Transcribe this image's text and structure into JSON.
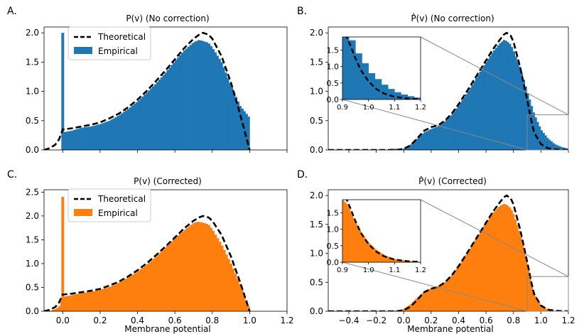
{
  "figure": {
    "xlabel": "Membrane potential"
  },
  "colors": {
    "blue": "#1f77b4",
    "orange": "#ff7f0e",
    "theory": "#000000",
    "zoom": "#888888"
  },
  "chart_data": [
    {
      "id": "A",
      "panel_label": "A.",
      "title": "P(v) (No correction)",
      "type": "bar",
      "series": [
        {
          "name": "Theoretical",
          "style": "dashed-line"
        },
        {
          "name": "Empirical",
          "style": "histogram"
        }
      ],
      "legend": {
        "entries": [
          "Theoretical",
          "Empirical"
        ],
        "placement": "top-left"
      },
      "xlim": [
        -0.1,
        1.2
      ],
      "ylim": [
        0,
        2.1
      ],
      "xticks": [
        0.0,
        0.2,
        0.4,
        0.6,
        0.8,
        1.0,
        1.2
      ],
      "yticks": [
        0.0,
        0.5,
        1.0,
        1.5,
        2.0
      ],
      "show_xticklabels": false,
      "theory": [
        [
          -0.1,
          0
        ],
        [
          -0.07,
          0.03
        ],
        [
          -0.04,
          0.09
        ],
        [
          -0.02,
          0.18
        ],
        [
          0,
          0.35
        ],
        [
          0.05,
          0.37
        ],
        [
          0.1,
          0.4
        ],
        [
          0.15,
          0.43
        ],
        [
          0.2,
          0.47
        ],
        [
          0.25,
          0.54
        ],
        [
          0.3,
          0.62
        ],
        [
          0.35,
          0.73
        ],
        [
          0.4,
          0.86
        ],
        [
          0.45,
          1.01
        ],
        [
          0.5,
          1.18
        ],
        [
          0.55,
          1.36
        ],
        [
          0.6,
          1.55
        ],
        [
          0.65,
          1.74
        ],
        [
          0.7,
          1.9
        ],
        [
          0.73,
          1.97
        ],
        [
          0.75,
          2.0
        ],
        [
          0.78,
          1.97
        ],
        [
          0.8,
          1.9
        ],
        [
          0.85,
          1.6
        ],
        [
          0.9,
          1.15
        ],
        [
          0.95,
          0.6
        ],
        [
          1.0,
          0
        ]
      ],
      "empirical": [
        [
          0.0,
          0.3
        ],
        [
          0.05,
          0.33
        ],
        [
          0.1,
          0.38
        ],
        [
          0.15,
          0.4
        ],
        [
          0.2,
          0.44
        ],
        [
          0.25,
          0.5
        ],
        [
          0.3,
          0.59
        ],
        [
          0.35,
          0.7
        ],
        [
          0.4,
          0.83
        ],
        [
          0.45,
          0.98
        ],
        [
          0.5,
          1.14
        ],
        [
          0.55,
          1.32
        ],
        [
          0.6,
          1.52
        ],
        [
          0.65,
          1.7
        ],
        [
          0.7,
          1.84
        ],
        [
          0.73,
          1.88
        ],
        [
          0.75,
          1.86
        ],
        [
          0.78,
          1.83
        ],
        [
          0.8,
          1.75
        ],
        [
          0.85,
          1.5
        ],
        [
          0.9,
          1.1
        ],
        [
          0.95,
          0.75
        ],
        [
          1.0,
          0.55
        ]
      ],
      "empirical_range": [
        0.0,
        1.0
      ],
      "spike": {
        "x": 0.0,
        "height": 2.0
      }
    },
    {
      "id": "B",
      "panel_label": "B.",
      "title": "P̂(v) (No correction)",
      "type": "bar",
      "series": [
        {
          "name": "Theoretical",
          "style": "dashed-line"
        },
        {
          "name": "Empirical",
          "style": "histogram"
        }
      ],
      "xlim": [
        -0.55,
        1.2
      ],
      "ylim": [
        0,
        2.1
      ],
      "xticks": [
        -0.4,
        -0.2,
        0.0,
        0.2,
        0.4,
        0.6,
        0.8,
        1.0,
        1.2
      ],
      "yticks": [
        0.0,
        0.5,
        1.0,
        1.5,
        2.0
      ],
      "show_xticklabels": false,
      "theory": [
        [
          -0.55,
          0
        ],
        [
          -0.05,
          0
        ],
        [
          0.0,
          0.02
        ],
        [
          0.05,
          0.08
        ],
        [
          0.1,
          0.2
        ],
        [
          0.15,
          0.33
        ],
        [
          0.2,
          0.39
        ],
        [
          0.25,
          0.42
        ],
        [
          0.3,
          0.5
        ],
        [
          0.35,
          0.62
        ],
        [
          0.4,
          0.78
        ],
        [
          0.45,
          0.96
        ],
        [
          0.5,
          1.15
        ],
        [
          0.55,
          1.34
        ],
        [
          0.6,
          1.53
        ],
        [
          0.65,
          1.72
        ],
        [
          0.7,
          1.88
        ],
        [
          0.73,
          1.97
        ],
        [
          0.75,
          2.0
        ],
        [
          0.78,
          1.95
        ],
        [
          0.8,
          1.85
        ],
        [
          0.85,
          1.4
        ],
        [
          0.9,
          0.85
        ],
        [
          0.93,
          0.5
        ],
        [
          0.95,
          0.3
        ],
        [
          1.0,
          0.1
        ],
        [
          1.05,
          0.03
        ],
        [
          1.1,
          0.01
        ],
        [
          1.2,
          0
        ]
      ],
      "empirical": [
        [
          0.0,
          0.02
        ],
        [
          0.05,
          0.09
        ],
        [
          0.1,
          0.2
        ],
        [
          0.15,
          0.3
        ],
        [
          0.2,
          0.36
        ],
        [
          0.25,
          0.4
        ],
        [
          0.3,
          0.49
        ],
        [
          0.35,
          0.6
        ],
        [
          0.4,
          0.76
        ],
        [
          0.45,
          0.93
        ],
        [
          0.5,
          1.12
        ],
        [
          0.55,
          1.31
        ],
        [
          0.6,
          1.5
        ],
        [
          0.65,
          1.68
        ],
        [
          0.7,
          1.82
        ],
        [
          0.73,
          1.88
        ],
        [
          0.75,
          1.86
        ],
        [
          0.78,
          1.8
        ],
        [
          0.8,
          1.7
        ],
        [
          0.85,
          1.4
        ],
        [
          0.9,
          1.0
        ],
        [
          0.95,
          0.62
        ],
        [
          1.0,
          0.35
        ],
        [
          1.05,
          0.2
        ],
        [
          1.1,
          0.1
        ],
        [
          1.15,
          0.05
        ],
        [
          1.2,
          0.02
        ]
      ],
      "empirical_range": [
        -0.1,
        1.2
      ],
      "inset": {
        "xlim": [
          0.9,
          1.2
        ],
        "ylim": [
          0,
          1.9
        ],
        "xticks": [
          0.9,
          1.0,
          1.1,
          1.2
        ],
        "yticks": [
          0.0,
          0.5,
          1.0,
          1.5
        ],
        "xticklabels": [
          "0.9",
          "1.0",
          "1.1",
          "1.2"
        ],
        "yticklabels": [
          "0.0",
          "0.5",
          "1.0",
          "1.5"
        ],
        "zoom_region": {
          "x": [
            0.9,
            1.2
          ],
          "y": [
            0,
            0.6
          ]
        },
        "empirical_bins": [
          [
            0.9,
            1.9
          ],
          [
            0.925,
            1.8
          ],
          [
            0.95,
            1.4
          ],
          [
            0.975,
            1.1
          ],
          [
            1.0,
            0.8
          ],
          [
            1.025,
            0.62
          ],
          [
            1.05,
            0.45
          ],
          [
            1.075,
            0.32
          ],
          [
            1.1,
            0.22
          ],
          [
            1.125,
            0.15
          ],
          [
            1.15,
            0.1
          ],
          [
            1.175,
            0.06
          ]
        ],
        "empirical_binwidth": 0.025,
        "theory": [
          [
            0.9,
            2.2
          ],
          [
            0.93,
            1.65
          ],
          [
            0.95,
            1.25
          ],
          [
            0.97,
            0.9
          ],
          [
            1.0,
            0.55
          ],
          [
            1.03,
            0.32
          ],
          [
            1.06,
            0.18
          ],
          [
            1.1,
            0.08
          ],
          [
            1.15,
            0.03
          ],
          [
            1.2,
            0.01
          ]
        ]
      }
    },
    {
      "id": "C",
      "panel_label": "C.",
      "title": "P(v) (Corrected)",
      "type": "bar",
      "series": [
        {
          "name": "Theoretical",
          "style": "dashed-line"
        },
        {
          "name": "Empirical",
          "style": "histogram"
        }
      ],
      "legend": {
        "entries": [
          "Theoretical",
          "Empirical"
        ],
        "placement": "top-left"
      },
      "xlim": [
        -0.1,
        1.2
      ],
      "ylim": [
        0,
        2.55
      ],
      "xticks": [
        0.0,
        0.2,
        0.4,
        0.6,
        0.8,
        1.0,
        1.2
      ],
      "yticks": [
        0.0,
        0.5,
        1.0,
        1.5,
        2.0,
        2.5
      ],
      "xticklabels": [
        "0.0",
        "0.2",
        "0.4",
        "0.6",
        "0.8",
        "1.0",
        "1.2"
      ],
      "show_xticklabels": true,
      "theory": [
        [
          -0.1,
          0
        ],
        [
          -0.07,
          0.03
        ],
        [
          -0.04,
          0.09
        ],
        [
          -0.02,
          0.18
        ],
        [
          0,
          0.35
        ],
        [
          0.05,
          0.37
        ],
        [
          0.1,
          0.4
        ],
        [
          0.15,
          0.43
        ],
        [
          0.2,
          0.47
        ],
        [
          0.25,
          0.54
        ],
        [
          0.3,
          0.62
        ],
        [
          0.35,
          0.73
        ],
        [
          0.4,
          0.86
        ],
        [
          0.45,
          1.01
        ],
        [
          0.5,
          1.18
        ],
        [
          0.55,
          1.36
        ],
        [
          0.6,
          1.55
        ],
        [
          0.65,
          1.74
        ],
        [
          0.7,
          1.9
        ],
        [
          0.73,
          1.97
        ],
        [
          0.75,
          2.0
        ],
        [
          0.78,
          1.97
        ],
        [
          0.8,
          1.9
        ],
        [
          0.85,
          1.6
        ],
        [
          0.9,
          1.15
        ],
        [
          0.95,
          0.6
        ],
        [
          1.0,
          0
        ]
      ],
      "empirical": [
        [
          -0.05,
          0.03
        ],
        [
          -0.02,
          0.09
        ],
        [
          0.0,
          0.3
        ],
        [
          0.05,
          0.34
        ],
        [
          0.1,
          0.38
        ],
        [
          0.15,
          0.41
        ],
        [
          0.2,
          0.45
        ],
        [
          0.25,
          0.51
        ],
        [
          0.3,
          0.6
        ],
        [
          0.35,
          0.71
        ],
        [
          0.4,
          0.83
        ],
        [
          0.45,
          0.98
        ],
        [
          0.5,
          1.15
        ],
        [
          0.55,
          1.34
        ],
        [
          0.6,
          1.53
        ],
        [
          0.65,
          1.7
        ],
        [
          0.7,
          1.85
        ],
        [
          0.72,
          1.88
        ],
        [
          0.75,
          1.86
        ],
        [
          0.78,
          1.82
        ],
        [
          0.8,
          1.72
        ],
        [
          0.85,
          1.4
        ],
        [
          0.9,
          1.0
        ],
        [
          0.95,
          0.55
        ],
        [
          1.0,
          0.05
        ]
      ],
      "empirical_range": [
        -0.06,
        1.0
      ],
      "spike": {
        "x": 0.0,
        "height": 2.4
      }
    },
    {
      "id": "D",
      "panel_label": "D.",
      "title": "P̂(v) (Corrected)",
      "type": "bar",
      "series": [
        {
          "name": "Theoretical",
          "style": "dashed-line"
        },
        {
          "name": "Empirical",
          "style": "histogram"
        }
      ],
      "xlim": [
        -0.55,
        1.2
      ],
      "ylim": [
        0,
        2.1
      ],
      "xticks": [
        -0.4,
        -0.2,
        0.0,
        0.2,
        0.4,
        0.6,
        0.8,
        1.0,
        1.2
      ],
      "yticks": [
        0.0,
        0.5,
        1.0,
        1.5,
        2.0
      ],
      "xticklabels": [
        "−0.4",
        "−0.2",
        "0.0",
        "0.2",
        "0.4",
        "0.6",
        "0.8",
        "1.0",
        "1.2"
      ],
      "show_xticklabels": true,
      "theory": [
        [
          -0.55,
          0
        ],
        [
          -0.05,
          0
        ],
        [
          0.0,
          0.02
        ],
        [
          0.05,
          0.08
        ],
        [
          0.1,
          0.2
        ],
        [
          0.15,
          0.33
        ],
        [
          0.2,
          0.39
        ],
        [
          0.25,
          0.42
        ],
        [
          0.3,
          0.5
        ],
        [
          0.35,
          0.62
        ],
        [
          0.4,
          0.78
        ],
        [
          0.45,
          0.96
        ],
        [
          0.5,
          1.15
        ],
        [
          0.55,
          1.34
        ],
        [
          0.6,
          1.53
        ],
        [
          0.65,
          1.72
        ],
        [
          0.7,
          1.88
        ],
        [
          0.73,
          1.97
        ],
        [
          0.75,
          2.0
        ],
        [
          0.78,
          1.95
        ],
        [
          0.8,
          1.85
        ],
        [
          0.85,
          1.4
        ],
        [
          0.9,
          0.85
        ],
        [
          0.93,
          0.5
        ],
        [
          0.95,
          0.3
        ],
        [
          1.0,
          0.1
        ],
        [
          1.05,
          0.03
        ],
        [
          1.1,
          0.01
        ],
        [
          1.2,
          0
        ]
      ],
      "empirical": [
        [
          -0.05,
          0.01
        ],
        [
          0.0,
          0.04
        ],
        [
          0.05,
          0.12
        ],
        [
          0.1,
          0.24
        ],
        [
          0.15,
          0.34
        ],
        [
          0.2,
          0.4
        ],
        [
          0.25,
          0.44
        ],
        [
          0.3,
          0.5
        ],
        [
          0.35,
          0.62
        ],
        [
          0.4,
          0.78
        ],
        [
          0.45,
          0.96
        ],
        [
          0.5,
          1.15
        ],
        [
          0.55,
          1.34
        ],
        [
          0.6,
          1.53
        ],
        [
          0.65,
          1.7
        ],
        [
          0.7,
          1.82
        ],
        [
          0.73,
          1.86
        ],
        [
          0.75,
          1.84
        ],
        [
          0.78,
          1.78
        ],
        [
          0.8,
          1.68
        ],
        [
          0.85,
          1.32
        ],
        [
          0.9,
          0.82
        ],
        [
          0.93,
          0.48
        ],
        [
          0.95,
          0.3
        ],
        [
          1.0,
          0.1
        ],
        [
          1.05,
          0.03
        ],
        [
          1.1,
          0.01
        ]
      ],
      "empirical_range": [
        -0.1,
        1.1
      ],
      "inset": {
        "xlim": [
          0.9,
          1.2
        ],
        "ylim": [
          0,
          1.9
        ],
        "xticks": [
          0.9,
          1.0,
          1.1,
          1.2
        ],
        "yticks": [
          0.0,
          0.5,
          1.0,
          1.5
        ],
        "xticklabels": [
          "0.9",
          "1.0",
          "1.1",
          "1.2"
        ],
        "yticklabels": [
          "0.0",
          "0.5",
          "1.0",
          "1.5"
        ],
        "zoom_region": {
          "x": [
            0.9,
            1.2
          ],
          "y": [
            0,
            0.6
          ]
        },
        "empirical_curve": [
          [
            0.9,
            1.9
          ],
          [
            0.92,
            1.75
          ],
          [
            0.95,
            1.2
          ],
          [
            0.98,
            0.82
          ],
          [
            1.0,
            0.6
          ],
          [
            1.03,
            0.38
          ],
          [
            1.06,
            0.22
          ],
          [
            1.1,
            0.1
          ],
          [
            1.15,
            0.04
          ],
          [
            1.2,
            0.01
          ]
        ],
        "theory": [
          [
            0.9,
            2.2
          ],
          [
            0.93,
            1.65
          ],
          [
            0.95,
            1.25
          ],
          [
            0.97,
            0.9
          ],
          [
            1.0,
            0.55
          ],
          [
            1.03,
            0.32
          ],
          [
            1.06,
            0.18
          ],
          [
            1.1,
            0.08
          ],
          [
            1.15,
            0.03
          ],
          [
            1.2,
            0.01
          ]
        ]
      }
    }
  ]
}
